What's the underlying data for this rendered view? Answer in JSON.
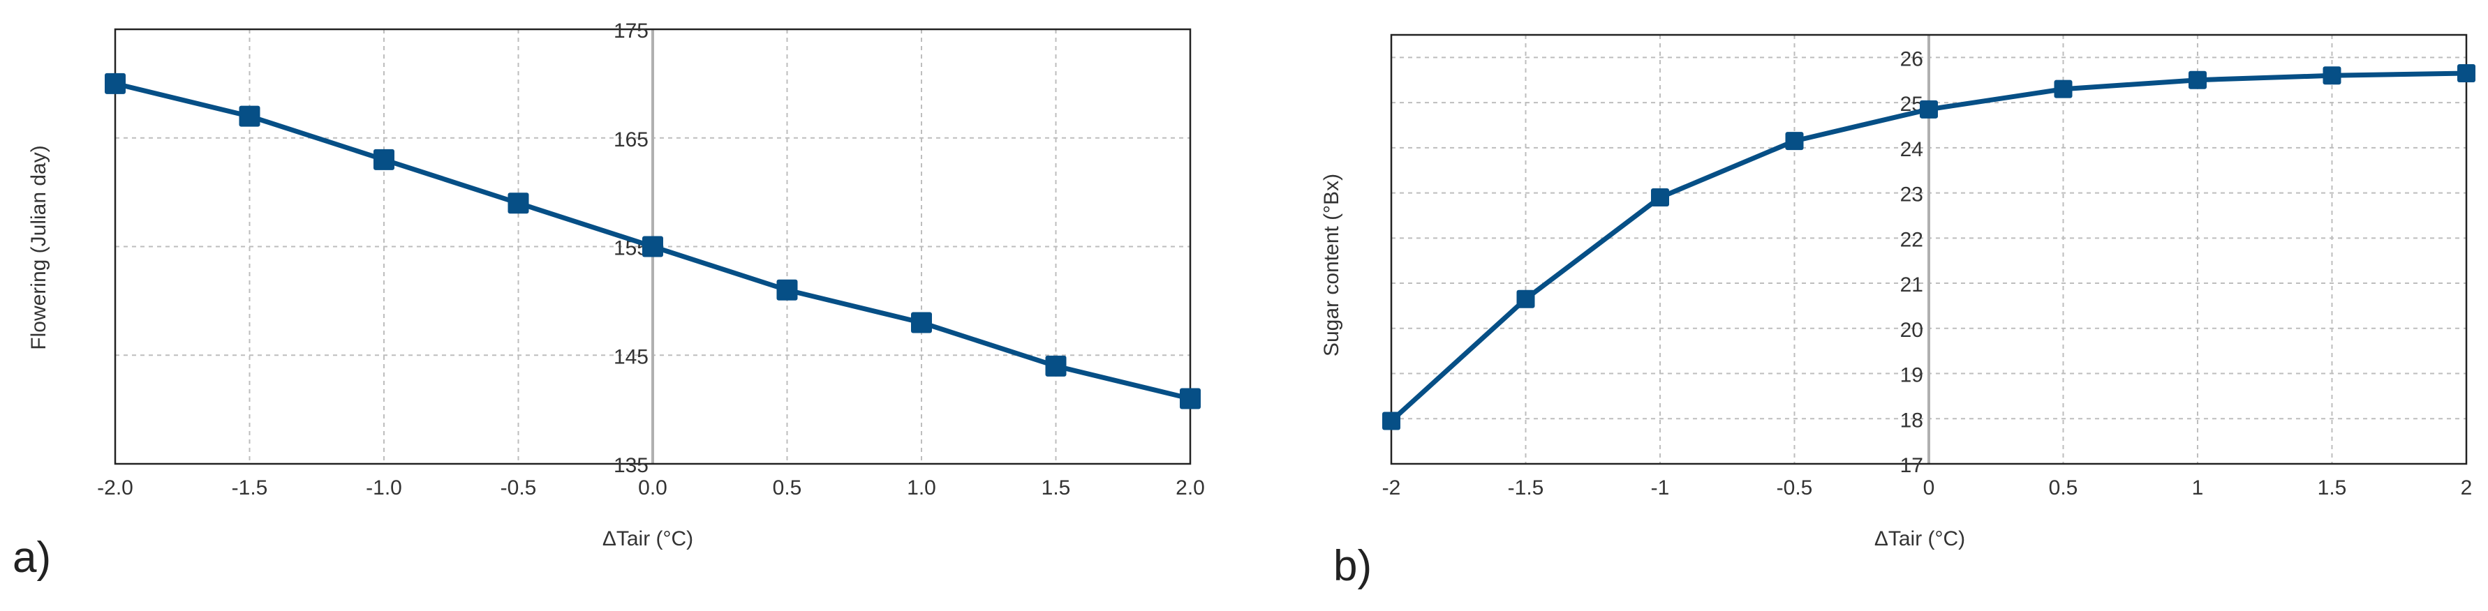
{
  "chart_data": [
    {
      "type": "line",
      "panel_label": "a)",
      "xlabel": "ΔTair (°C)",
      "ylabel": "Flowering (Julian day)",
      "x": [
        -2.0,
        -1.5,
        -1.0,
        -0.5,
        0.0,
        0.5,
        1.0,
        1.5,
        2.0
      ],
      "x_ticks": [
        "-2.0",
        "-1.5",
        "-1.0",
        "-0.5",
        "0.0",
        "0.5",
        "1.0",
        "1.5",
        "2.0"
      ],
      "y_ticks": [
        "175",
        "165",
        "155",
        "145",
        "135"
      ],
      "y_tick_values": [
        175,
        165,
        155,
        145,
        135
      ],
      "xlim": [
        -2.0,
        2.0
      ],
      "ylim": [
        135,
        175
      ],
      "grid": true,
      "y_axis_at_x": 0,
      "series": [
        {
          "values": [
            170,
            167,
            163,
            159,
            155,
            151,
            148,
            144,
            141
          ],
          "color": "#064f86"
        }
      ]
    },
    {
      "type": "line",
      "panel_label": "b)",
      "xlabel": "ΔTair (°C)",
      "ylabel": "Sugar content (°Bx)",
      "x": [
        -2,
        -1.5,
        -1,
        -0.5,
        0,
        0.5,
        1,
        1.5,
        2
      ],
      "x_ticks": [
        "-2",
        "-1.5",
        "-1",
        "-0.5",
        "0",
        "0.5",
        "1",
        "1.5",
        "2"
      ],
      "y_ticks": [
        "26",
        "25",
        "24",
        "23",
        "22",
        "21",
        "20",
        "19",
        "18",
        "17"
      ],
      "y_tick_values": [
        26,
        25,
        24,
        23,
        22,
        21,
        20,
        19,
        18,
        17
      ],
      "xlim": [
        -2,
        2
      ],
      "ylim": [
        17,
        26.5
      ],
      "grid": true,
      "y_axis_at_x": 0,
      "series": [
        {
          "values": [
            17.95,
            20.65,
            22.9,
            24.15,
            24.85,
            25.3,
            25.5,
            25.6,
            25.65
          ],
          "color": "#064f86"
        }
      ]
    }
  ]
}
